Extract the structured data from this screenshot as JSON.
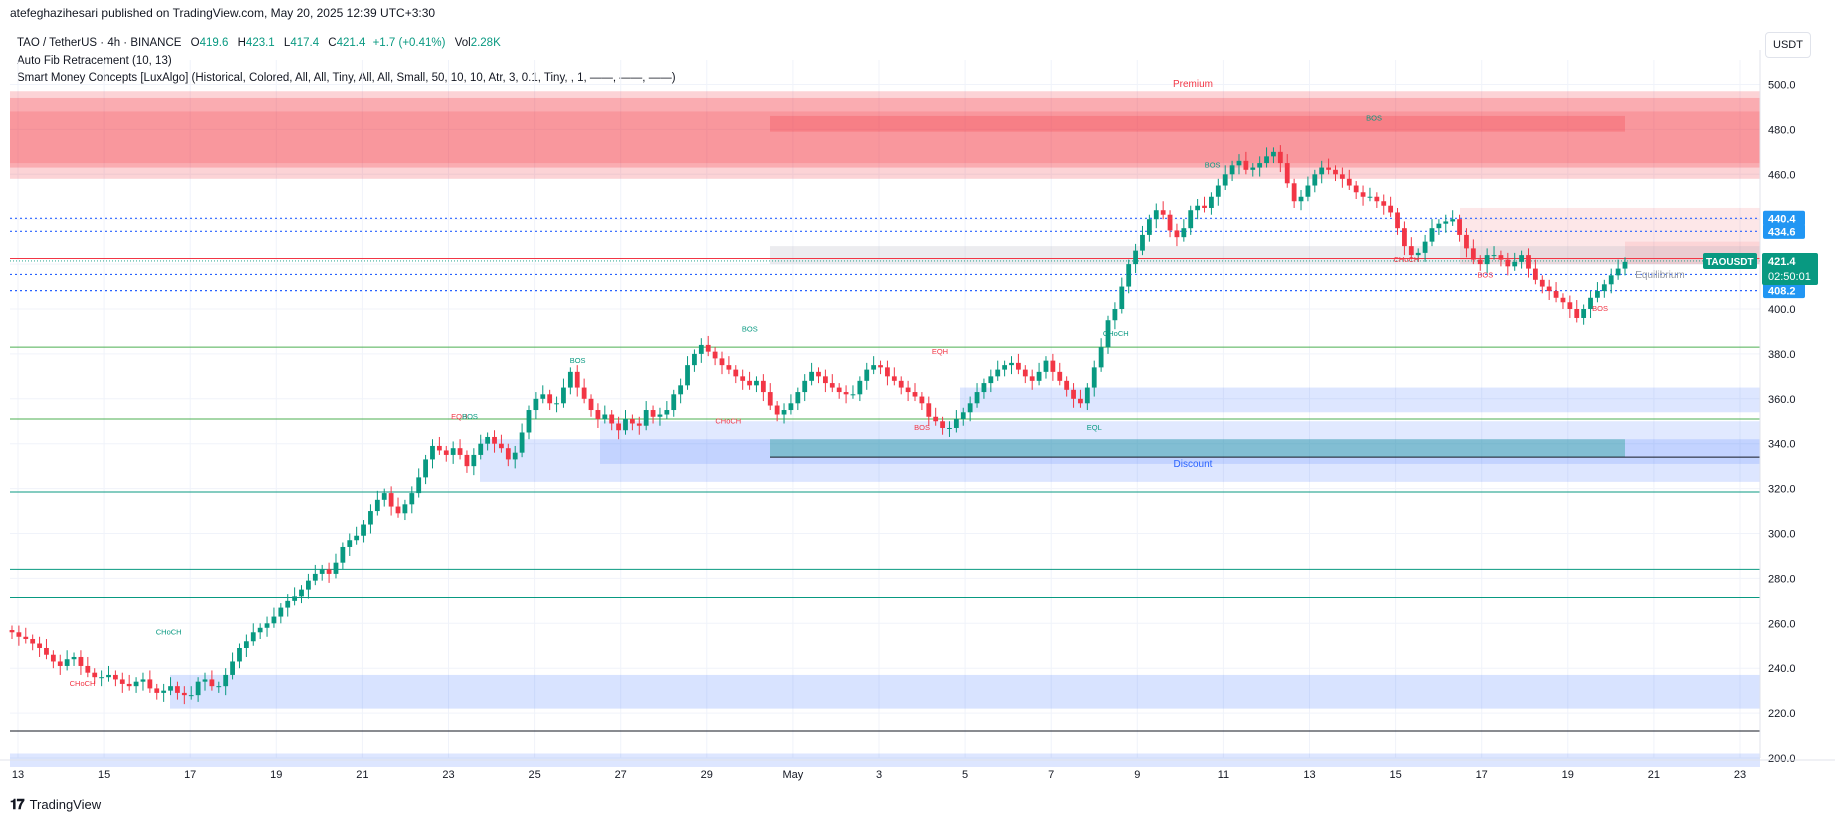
{
  "header": {
    "publisher": "atefeghazihesari published on TradingView.com, May 20, 2025 12:39 UTC+3:30"
  },
  "legend": {
    "symbol_line": "TAO / TetherUS · 4h · BINANCE",
    "open_label": "O",
    "open": "419.6",
    "high_label": "H",
    "high": "423.1",
    "low_label": "L",
    "low": "417.4",
    "close_label": "C",
    "close": "421.4",
    "change": "+1.7 (+0.41%)",
    "vol_label": "Vol",
    "vol": "2.28K",
    "indicator1": "Auto Fib Retracement (10, 13)",
    "indicator2": "Smart Money Concepts [LuxAlgo] (Historical, Colored, All, All, Tiny, All, All, Small, 50, 10, 10, Atr, 3, 0.1, Tiny, , 1, ——, ——, ——)"
  },
  "toolbar": {
    "currency": "USDT"
  },
  "footer": {
    "brand": "TradingView"
  },
  "colors": {
    "up": "#089981",
    "down": "#f23645",
    "fib_blue": "#2962ff",
    "premium": "#f23645",
    "discount": "#2962ff"
  },
  "chart_data": {
    "type": "candlestick",
    "symbol": "TAOUSDT",
    "timeframe": "4h",
    "ylim": [
      195,
      505
    ],
    "y_ticks": [
      "500.0",
      "480.0",
      "460.0",
      "440.0",
      "420.0",
      "400.0",
      "380.0",
      "360.0",
      "340.0",
      "320.0",
      "300.0",
      "280.0",
      "260.0",
      "240.0",
      "220.0",
      "200.0"
    ],
    "x_ticks": [
      "13",
      "15",
      "17",
      "19",
      "21",
      "23",
      "25",
      "27",
      "29",
      "May",
      "3",
      "5",
      "7",
      "9",
      "11",
      "13",
      "15",
      "17",
      "19",
      "21",
      "23"
    ],
    "price_label": {
      "symbol": "TAOUSDT",
      "price": "421.4",
      "countdown": "02:50:01"
    },
    "fib_levels": [
      "440.4",
      "434.6",
      "415.4",
      "408.2"
    ],
    "zone_labels": {
      "premium": "Premium",
      "discount": "Discount",
      "equilibrium": "Equilibrium"
    },
    "structure_labels": [
      {
        "text": "BOS",
        "x": "May 13 12:00",
        "y": 484,
        "color": "up"
      },
      {
        "text": "BOS",
        "x": "May 9 18:00",
        "y": 463,
        "color": "up"
      },
      {
        "text": "CHoCH",
        "x": "May 14 06:00",
        "y": 421,
        "color": "down"
      },
      {
        "text": "BOS",
        "x": "May 16 02:00",
        "y": 414,
        "color": "down"
      },
      {
        "text": "BOS",
        "x": "May 18 18:00",
        "y": 399,
        "color": "down"
      },
      {
        "text": "BOS",
        "x": "Apr 30 00:00",
        "y": 390,
        "color": "up"
      },
      {
        "text": "CHoCH",
        "x": "May 7 12:00",
        "y": 388,
        "color": "up"
      },
      {
        "text": "EQH",
        "x": "May 3 10:00",
        "y": 380,
        "color": "down"
      },
      {
        "text": "BOS",
        "x": "Apr 26 00:00",
        "y": 376,
        "color": "up"
      },
      {
        "text": "EQH",
        "x": "Apr 23 06:00",
        "y": 351,
        "color": "down"
      },
      {
        "text": "BOS",
        "x": "Apr 23 12:00",
        "y": 351,
        "color": "up"
      },
      {
        "text": "CHoCH",
        "x": "Apr 29 12:00",
        "y": 349,
        "color": "down"
      },
      {
        "text": "BOS",
        "x": "May 3 00:00",
        "y": 346,
        "color": "down"
      },
      {
        "text": "EQL",
        "x": "May 7 00:00",
        "y": 346,
        "color": "up"
      },
      {
        "text": "CHoCH",
        "x": "Apr 16 12:00",
        "y": 255,
        "color": "up"
      },
      {
        "text": "CHoCH",
        "x": "Apr 14 12:00",
        "y": 232,
        "color": "down"
      }
    ],
    "series": [
      {
        "name": "TAOUSDT 4h close",
        "values": [
          256,
          254,
          253,
          251,
          249,
          246,
          243,
          241,
          244,
          245,
          241,
          238,
          236,
          236,
          237,
          235,
          233,
          232,
          234,
          235,
          231,
          229,
          230,
          232,
          229,
          228,
          228,
          234,
          235,
          232,
          232,
          237,
          243,
          249,
          252,
          256,
          258,
          260,
          263,
          267,
          270,
          272,
          275,
          279,
          282,
          284,
          282,
          287,
          294,
          297,
          299,
          304,
          310,
          315,
          318,
          312,
          309,
          313,
          318,
          325,
          333,
          339,
          337,
          335,
          338,
          335,
          330,
          335,
          340,
          343,
          340,
          338,
          333,
          336,
          345,
          355,
          360,
          362,
          358,
          358,
          365,
          372,
          365,
          360,
          355,
          351,
          353,
          349,
          346,
          351,
          349,
          348,
          355,
          352,
          353,
          355,
          362,
          366,
          375,
          380,
          384,
          381,
          378,
          375,
          373,
          370,
          368,
          366,
          368,
          363,
          357,
          353,
          355,
          358,
          363,
          368,
          372,
          370,
          367,
          365,
          363,
          362,
          362,
          368,
          373,
          375,
          374,
          370,
          368,
          365,
          363,
          361,
          358,
          352,
          350,
          347,
          347,
          351,
          354,
          358,
          363,
          367,
          370,
          373,
          375,
          376,
          373,
          370,
          368,
          372,
          377,
          372,
          368,
          364,
          360,
          358,
          365,
          374,
          383,
          395,
          400,
          410,
          420,
          426,
          433,
          440,
          444,
          442,
          435,
          432,
          436,
          444,
          446,
          445,
          450,
          455,
          460,
          464,
          466,
          462,
          463,
          465,
          468,
          470,
          465,
          456,
          448,
          450,
          455,
          460,
          463,
          462,
          460,
          458,
          455,
          452,
          450,
          450,
          448,
          446,
          443,
          436,
          428,
          424,
          425,
          430,
          436,
          438,
          439,
          440,
          433,
          427,
          422,
          420,
          424,
          424,
          422,
          419,
          421,
          424,
          418,
          413,
          410,
          408,
          405,
          403,
          400,
          396,
          400,
          405,
          408,
          411,
          415,
          418,
          421
        ]
      }
    ]
  }
}
